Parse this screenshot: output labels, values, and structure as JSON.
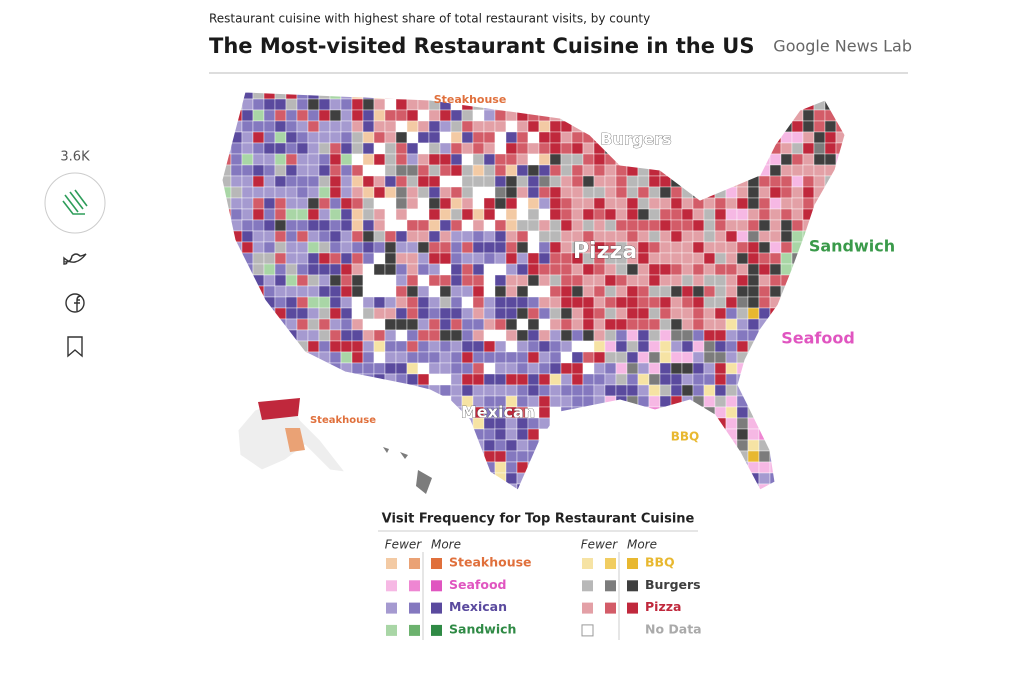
{
  "header": {
    "subtitle": "Restaurant cuisine with highest share of total restaurant visits, by county",
    "title": "The Most-visited Restaurant Cuisine in the US",
    "logo": "Google News Lab"
  },
  "sidebar": {
    "claps": "3.6K"
  },
  "map": {
    "annotations": [
      {
        "label": "Steakhouse",
        "color": "#e0703c"
      },
      {
        "label": "Burgers",
        "color": "#ffffff"
      },
      {
        "label": "Pizza",
        "color": "#ffffff"
      },
      {
        "label": "Sandwich",
        "color": "#3a9a4a"
      },
      {
        "label": "Seafood",
        "color": "#e055c0"
      },
      {
        "label": "Mexican",
        "color": "#ffffff"
      },
      {
        "label": "BBQ",
        "color": "#e8b830"
      },
      {
        "label": "Steakhouse",
        "color": "#e0703c"
      }
    ]
  },
  "legend": {
    "title": "Visit Frequency for Top Restaurant Cuisine",
    "fewer": "Fewer",
    "more": "More",
    "items": [
      {
        "name": "Steakhouse",
        "colors": [
          "#f3caa4",
          "#eaa275",
          "#e0703c"
        ]
      },
      {
        "name": "Seafood",
        "colors": [
          "#f6b8e4",
          "#ee86d2",
          "#e055c0"
        ]
      },
      {
        "name": "Mexican",
        "colors": [
          "#a59ad0",
          "#8478bf",
          "#5a4a9e"
        ]
      },
      {
        "name": "Sandwich",
        "colors": [
          "#a9d6a6",
          "#6cb26e",
          "#2f8a45"
        ]
      },
      {
        "name": "BBQ",
        "colors": [
          "#f6e3a4",
          "#f1cd61",
          "#e8b830"
        ]
      },
      {
        "name": "Burgers",
        "colors": [
          "#b8b8b8",
          "#7c7c7c",
          "#3f3f3f"
        ]
      },
      {
        "name": "Pizza",
        "colors": [
          "#e3a0a6",
          "#d35c68",
          "#c0283c"
        ]
      },
      {
        "name": "No Data",
        "colors": [
          "#ffffff"
        ]
      }
    ]
  }
}
